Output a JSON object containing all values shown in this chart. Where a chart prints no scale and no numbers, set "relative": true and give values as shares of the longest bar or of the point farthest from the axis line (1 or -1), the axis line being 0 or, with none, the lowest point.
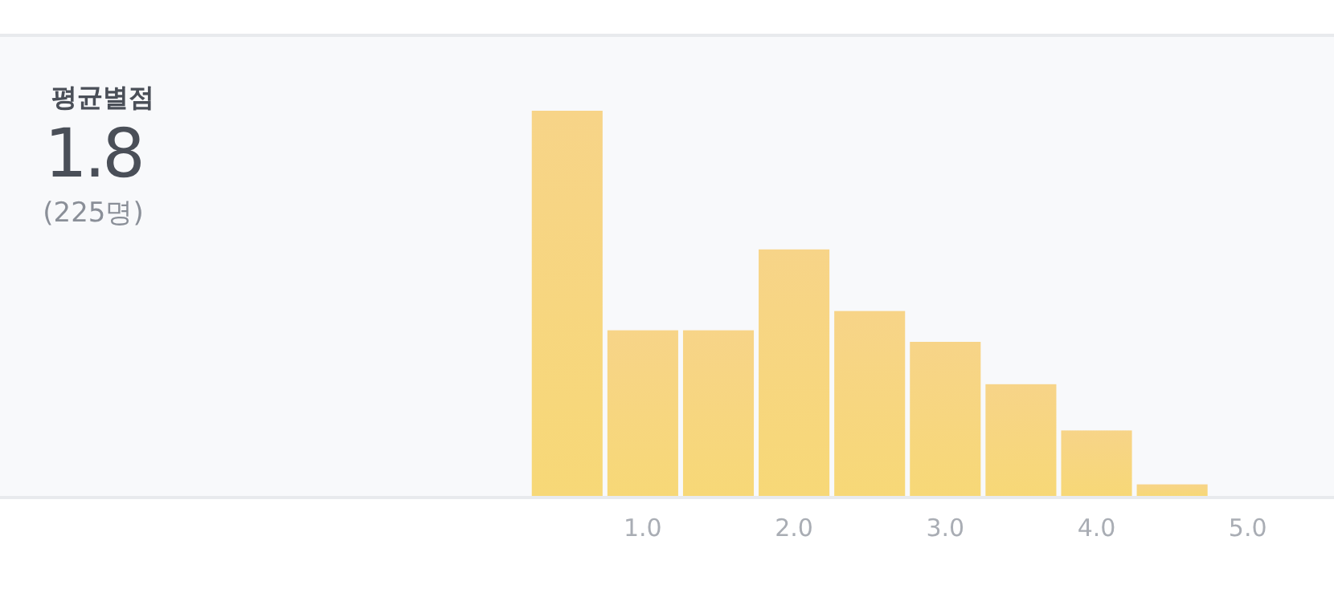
{
  "chart_data": {
    "type": "bar",
    "title": "평균별점",
    "annotations": [
      "1.8",
      "(225명)"
    ],
    "x": [
      0.5,
      1.0,
      1.5,
      2.0,
      2.5,
      3.0,
      3.5,
      4.0,
      4.5
    ],
    "values": [
      1,
      0.43,
      0.43,
      0.64,
      0.48,
      0.4,
      0.29,
      0.17,
      0.03
    ],
    "color": "#f7d877",
    "relative": true,
    "xlim": [
      -3.25,
      5.57
    ],
    "xticks": [
      {
        "value": 1,
        "label": "1.0"
      },
      {
        "value": 2,
        "label": "2.0"
      },
      {
        "value": 3,
        "label": "3.0"
      },
      {
        "value": 4,
        "label": "4.0"
      },
      {
        "value": 5,
        "label": "5.0"
      }
    ],
    "grid": false
  }
}
